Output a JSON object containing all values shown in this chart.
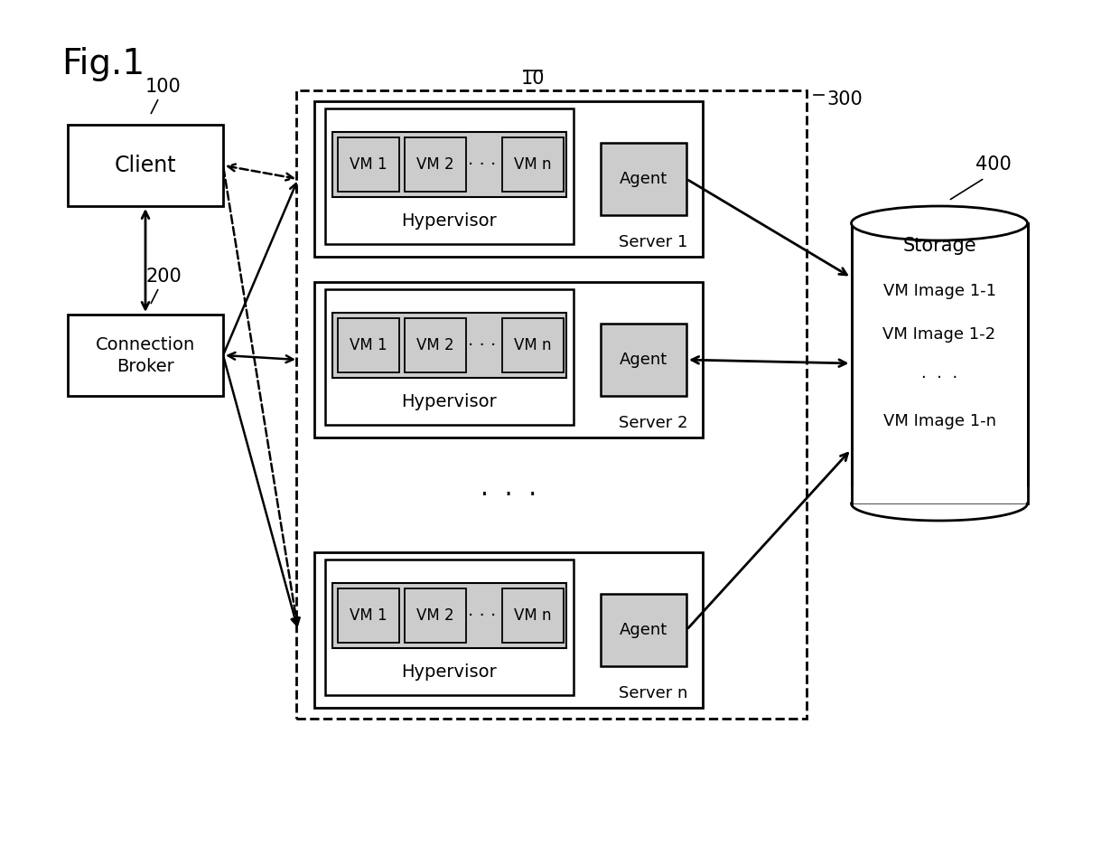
{
  "bg_color": "#ffffff",
  "fig_label": "Fig.1",
  "label_10": "10",
  "label_300": "300",
  "label_100": "100",
  "label_200": "200",
  "label_400": "400",
  "client_label": "Client",
  "broker_label1": "Connection",
  "broker_label2": "Broker",
  "storage_label": "Storage",
  "storage_content": [
    "VM Image 1-1",
    "VM Image 1-2",
    "·  ·  ·",
    "VM Image 1-n"
  ],
  "server_labels": [
    "Server 1",
    "Server 2",
    "Server n"
  ],
  "hypervisor_label": "Hypervisor",
  "agent_label": "Agent",
  "vm_label1": "VM 1",
  "vm_label2": "VM 2",
  "vm_dots": "· · ·",
  "vm_labeln": "VM n",
  "server_dots": "·  ·  ·",
  "vm_fill": "#cccccc",
  "agent_fill": "#cccccc",
  "box_edge": "#000000",
  "text_color": "#000000",
  "fontfamily": "DejaVu Sans"
}
